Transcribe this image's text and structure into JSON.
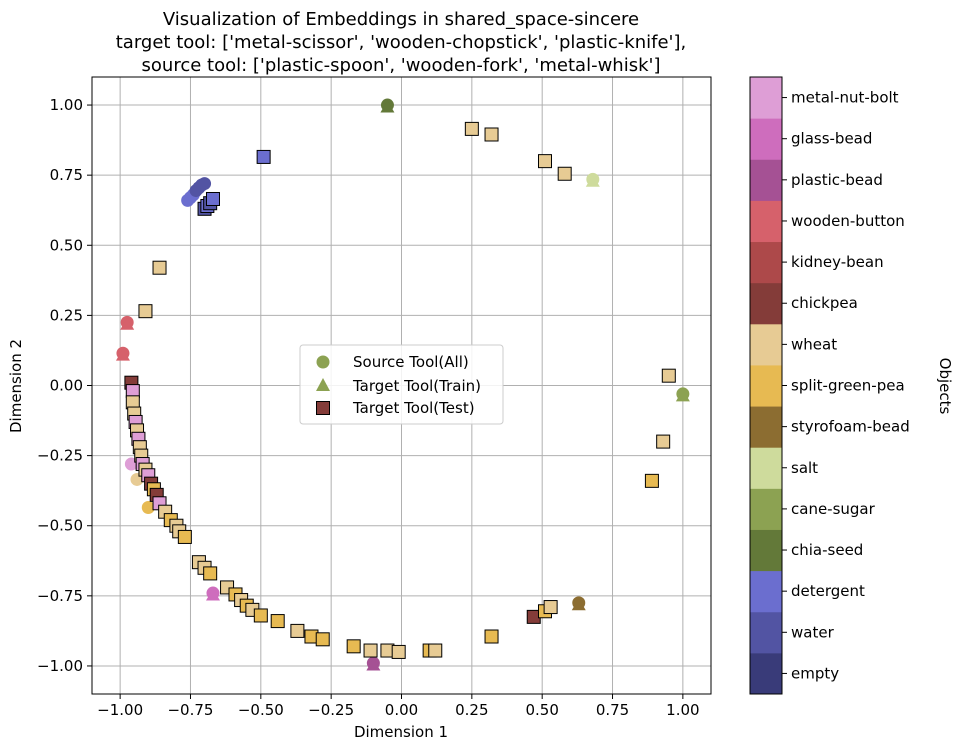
{
  "chart_data": {
    "type": "scatter",
    "title_lines": [
      "Visualization of Embeddings in shared_space-sincere",
      "target tool: ['metal-scissor', 'wooden-chopstick', 'plastic-knife'],",
      "source tool: ['plastic-spoon', 'wooden-fork', 'metal-whisk']"
    ],
    "xlabel": "Dimension 1",
    "ylabel": "Dimension 2",
    "xlim": [
      -1.1,
      1.1
    ],
    "ylim": [
      -1.1,
      1.1
    ],
    "xticks": [
      -1.0,
      -0.75,
      -0.5,
      -0.25,
      0.0,
      0.25,
      0.5,
      0.75,
      1.0
    ],
    "xtick_labels": [
      "−1.00",
      "−0.75",
      "−0.50",
      "−0.25",
      "0.00",
      "0.25",
      "0.50",
      "0.75",
      "1.00"
    ],
    "yticks": [
      -1.0,
      -0.75,
      -0.5,
      -0.25,
      0.0,
      0.25,
      0.5,
      0.75,
      1.0
    ],
    "ytick_labels": [
      "−1.00",
      "−0.75",
      "−0.50",
      "−0.25",
      "0.00",
      "0.25",
      "0.50",
      "0.75",
      "1.00"
    ],
    "grid": true,
    "legend": {
      "placement": "center",
      "entries": [
        {
          "label": "Source Tool(All)",
          "marker": "circle"
        },
        {
          "label": "Target Tool(Train)",
          "marker": "triangle"
        },
        {
          "label": "Target Tool(Test)",
          "marker": "square"
        }
      ]
    },
    "colorbar": {
      "label": "Objects",
      "categories": [
        "empty",
        "water",
        "detergent",
        "chia-seed",
        "cane-sugar",
        "salt",
        "styrofoam-bead",
        "split-green-pea",
        "wheat",
        "chickpea",
        "kidney-bean",
        "wooden-button",
        "plastic-bead",
        "glass-bead",
        "metal-nut-bolt"
      ],
      "colors": [
        "#393b79",
        "#5254a3",
        "#6b6ecf",
        "#637939",
        "#8ca252",
        "#cedb9c",
        "#8c6d31",
        "#e7ba52",
        "#e7cb94",
        "#843c39",
        "#ad494a",
        "#d6616b",
        "#a55194",
        "#ce6dbd",
        "#de9ed6"
      ]
    },
    "series": [
      {
        "name": "Source Tool(All)",
        "marker": "circle",
        "points": [
          {
            "x": -0.05,
            "y": 1.0,
            "object": "chia-seed"
          },
          {
            "x": 0.68,
            "y": 0.735,
            "object": "salt"
          },
          {
            "x": 1.0,
            "y": -0.03,
            "object": "cane-sugar"
          },
          {
            "x": 0.63,
            "y": -0.775,
            "object": "styrofoam-bead"
          },
          {
            "x": -0.1,
            "y": -0.99,
            "object": "plastic-bead"
          },
          {
            "x": -0.67,
            "y": -0.74,
            "object": "glass-bead"
          },
          {
            "x": -0.9,
            "y": -0.435,
            "object": "split-green-pea"
          },
          {
            "x": -0.94,
            "y": -0.335,
            "object": "wheat"
          },
          {
            "x": -0.96,
            "y": -0.28,
            "object": "metal-nut-bolt"
          },
          {
            "x": -0.99,
            "y": 0.115,
            "object": "wooden-button"
          },
          {
            "x": -0.975,
            "y": 0.225,
            "object": "wooden-button"
          },
          {
            "x": -0.76,
            "y": 0.66,
            "object": "detergent"
          },
          {
            "x": -0.75,
            "y": 0.67,
            "object": "detergent"
          },
          {
            "x": -0.74,
            "y": 0.68,
            "object": "detergent"
          },
          {
            "x": -0.73,
            "y": 0.695,
            "object": "water"
          },
          {
            "x": -0.72,
            "y": 0.705,
            "object": "water"
          },
          {
            "x": -0.71,
            "y": 0.715,
            "object": "water"
          },
          {
            "x": -0.7,
            "y": 0.72,
            "object": "water"
          }
        ]
      },
      {
        "name": "Target Tool(Train)",
        "marker": "triangle",
        "points": [
          {
            "x": -0.05,
            "y": 0.995,
            "object": "chia-seed"
          },
          {
            "x": 0.68,
            "y": 0.73,
            "object": "salt"
          },
          {
            "x": 1.0,
            "y": -0.035,
            "object": "cane-sugar"
          },
          {
            "x": 0.63,
            "y": -0.78,
            "object": "styrofoam-bead"
          },
          {
            "x": -0.1,
            "y": -0.995,
            "object": "plastic-bead"
          },
          {
            "x": -0.67,
            "y": -0.745,
            "object": "glass-bead"
          },
          {
            "x": -0.99,
            "y": 0.11,
            "object": "wooden-button"
          },
          {
            "x": -0.975,
            "y": 0.22,
            "object": "wooden-button"
          }
        ]
      },
      {
        "name": "Target Tool(Test)",
        "marker": "square",
        "points": [
          {
            "x": -0.49,
            "y": 0.815,
            "object": "detergent"
          },
          {
            "x": -0.7,
            "y": 0.63,
            "object": "water"
          },
          {
            "x": -0.69,
            "y": 0.64,
            "object": "detergent"
          },
          {
            "x": -0.68,
            "y": 0.65,
            "object": "water"
          },
          {
            "x": -0.67,
            "y": 0.665,
            "object": "detergent"
          },
          {
            "x": -0.86,
            "y": 0.42,
            "object": "wheat"
          },
          {
            "x": -0.91,
            "y": 0.265,
            "object": "wheat"
          },
          {
            "x": 0.25,
            "y": 0.915,
            "object": "wheat"
          },
          {
            "x": 0.32,
            "y": 0.895,
            "object": "wheat"
          },
          {
            "x": 0.51,
            "y": 0.8,
            "object": "wheat"
          },
          {
            "x": 0.58,
            "y": 0.755,
            "object": "wheat"
          },
          {
            "x": 0.95,
            "y": 0.035,
            "object": "wheat"
          },
          {
            "x": 0.93,
            "y": -0.2,
            "object": "wheat"
          },
          {
            "x": 0.89,
            "y": -0.34,
            "object": "split-green-pea"
          },
          {
            "x": -0.96,
            "y": 0.01,
            "object": "chickpea"
          },
          {
            "x": -0.955,
            "y": -0.02,
            "object": "metal-nut-bolt"
          },
          {
            "x": -0.955,
            "y": -0.06,
            "object": "wheat"
          },
          {
            "x": -0.95,
            "y": -0.1,
            "object": "wheat"
          },
          {
            "x": -0.945,
            "y": -0.13,
            "object": "metal-nut-bolt"
          },
          {
            "x": -0.94,
            "y": -0.16,
            "object": "wheat"
          },
          {
            "x": -0.935,
            "y": -0.19,
            "object": "metal-nut-bolt"
          },
          {
            "x": -0.93,
            "y": -0.22,
            "object": "wheat"
          },
          {
            "x": -0.925,
            "y": -0.25,
            "object": "wheat"
          },
          {
            "x": -0.92,
            "y": -0.28,
            "object": "metal-nut-bolt"
          },
          {
            "x": -0.91,
            "y": -0.3,
            "object": "wheat"
          },
          {
            "x": -0.9,
            "y": -0.32,
            "object": "metal-nut-bolt"
          },
          {
            "x": -0.89,
            "y": -0.35,
            "object": "chickpea"
          },
          {
            "x": -0.88,
            "y": -0.37,
            "object": "split-green-pea"
          },
          {
            "x": -0.87,
            "y": -0.39,
            "object": "chickpea"
          },
          {
            "x": -0.86,
            "y": -0.42,
            "object": "metal-nut-bolt"
          },
          {
            "x": -0.84,
            "y": -0.45,
            "object": "wheat"
          },
          {
            "x": -0.82,
            "y": -0.48,
            "object": "split-green-pea"
          },
          {
            "x": -0.8,
            "y": -0.5,
            "object": "wheat"
          },
          {
            "x": -0.79,
            "y": -0.52,
            "object": "wheat"
          },
          {
            "x": -0.77,
            "y": -0.54,
            "object": "split-green-pea"
          },
          {
            "x": -0.72,
            "y": -0.63,
            "object": "wheat"
          },
          {
            "x": -0.7,
            "y": -0.65,
            "object": "wheat"
          },
          {
            "x": -0.68,
            "y": -0.67,
            "object": "split-green-pea"
          },
          {
            "x": -0.62,
            "y": -0.72,
            "object": "wheat"
          },
          {
            "x": -0.59,
            "y": -0.745,
            "object": "split-green-pea"
          },
          {
            "x": -0.57,
            "y": -0.765,
            "object": "wheat"
          },
          {
            "x": -0.55,
            "y": -0.785,
            "object": "split-green-pea"
          },
          {
            "x": -0.53,
            "y": -0.8,
            "object": "wheat"
          },
          {
            "x": -0.5,
            "y": -0.82,
            "object": "split-green-pea"
          },
          {
            "x": -0.44,
            "y": -0.84,
            "object": "split-green-pea"
          },
          {
            "x": -0.37,
            "y": -0.875,
            "object": "wheat"
          },
          {
            "x": -0.32,
            "y": -0.895,
            "object": "split-green-pea"
          },
          {
            "x": -0.28,
            "y": -0.905,
            "object": "split-green-pea"
          },
          {
            "x": -0.17,
            "y": -0.93,
            "object": "split-green-pea"
          },
          {
            "x": -0.11,
            "y": -0.945,
            "object": "wheat"
          },
          {
            "x": -0.05,
            "y": -0.945,
            "object": "wheat"
          },
          {
            "x": -0.01,
            "y": -0.95,
            "object": "wheat"
          },
          {
            "x": 0.1,
            "y": -0.945,
            "object": "split-green-pea"
          },
          {
            "x": 0.12,
            "y": -0.945,
            "object": "wheat"
          },
          {
            "x": 0.32,
            "y": -0.895,
            "object": "split-green-pea"
          },
          {
            "x": 0.47,
            "y": -0.825,
            "object": "chickpea"
          },
          {
            "x": 0.51,
            "y": -0.805,
            "object": "split-green-pea"
          },
          {
            "x": 0.53,
            "y": -0.79,
            "object": "wheat"
          }
        ]
      }
    ]
  }
}
